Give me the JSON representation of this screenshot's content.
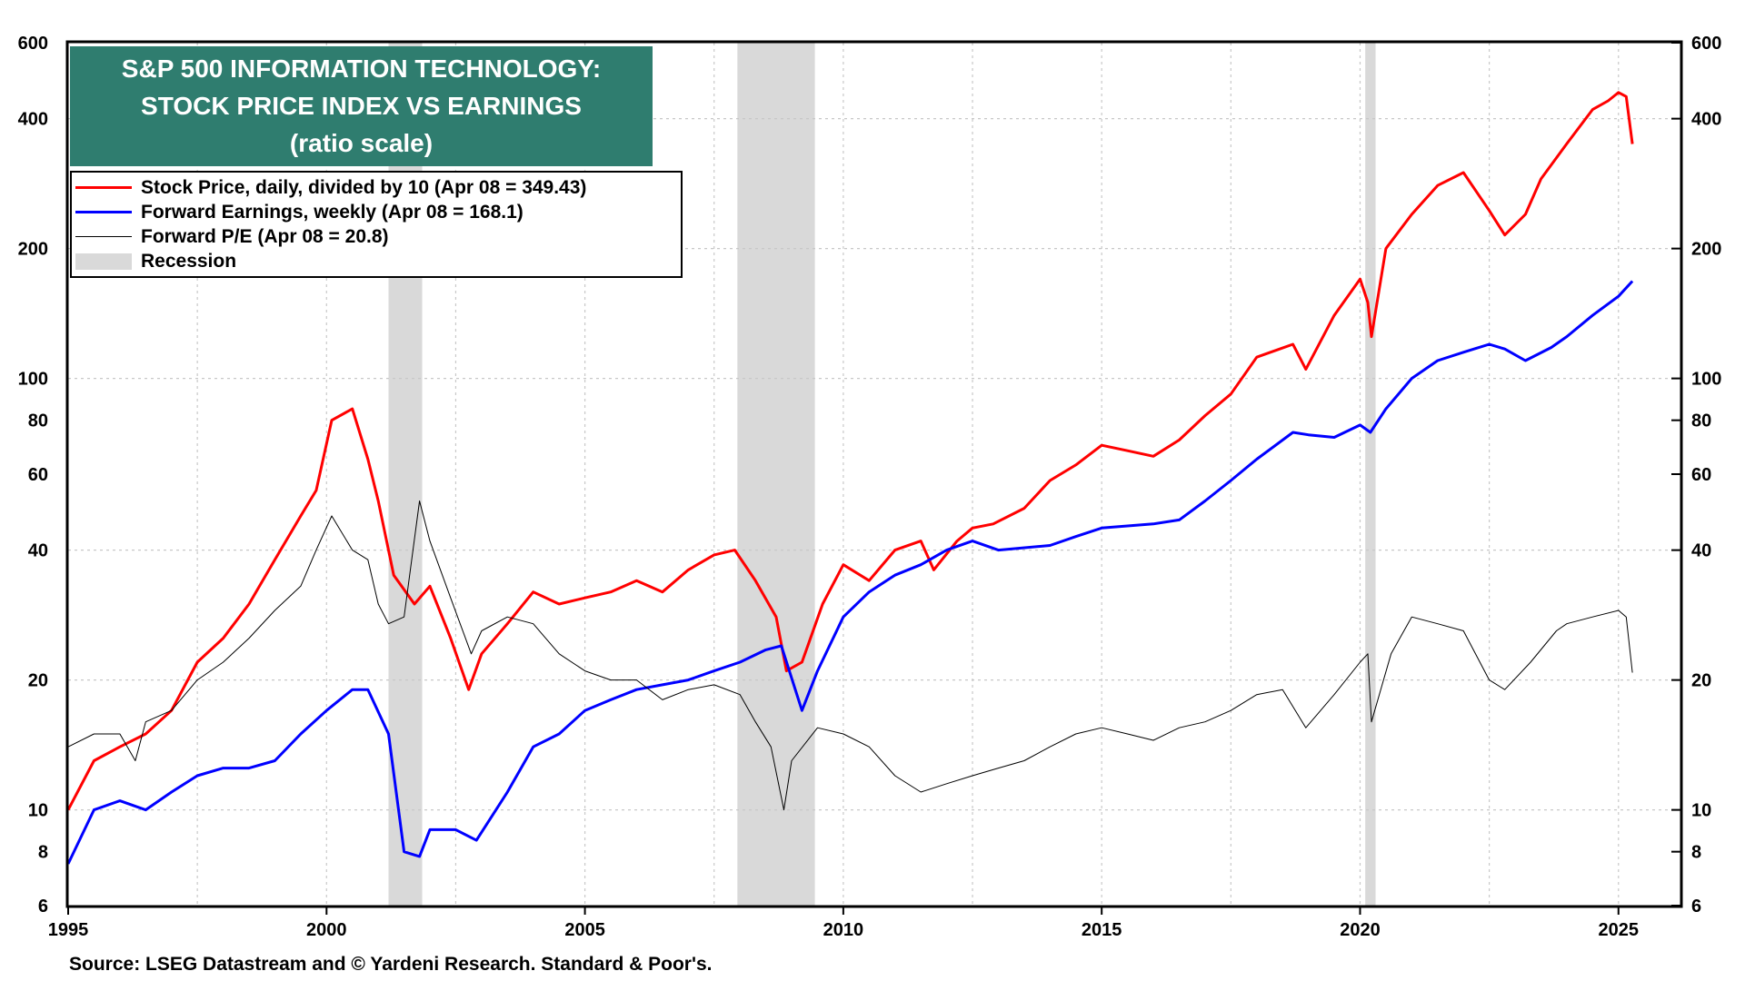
{
  "chart_data": {
    "type": "line",
    "title_lines": [
      "S&P 500 INFORMATION TECHNOLOGY:",
      "STOCK PRICE INDEX VS EARNINGS",
      "(ratio scale)"
    ],
    "y_scale": "log",
    "ylim": [
      6,
      600
    ],
    "xlim": [
      1995,
      2026.2
    ],
    "x_ticks": [
      "1995",
      "2000",
      "2005",
      "2010",
      "2015",
      "2020",
      "2025"
    ],
    "y_ticks": [
      "6",
      "8",
      "10",
      "20",
      "40",
      "60",
      "80",
      "100",
      "200",
      "400",
      "600"
    ],
    "grid": true,
    "legend_position": "top-left",
    "legend": [
      {
        "label": "Stock Price, daily, divided by 10 (Apr 08 = 349.43)",
        "color": "#ff0000",
        "kind": "line"
      },
      {
        "label": "Forward Earnings, weekly (Apr 08 = 168.1)",
        "color": "#0000ff",
        "kind": "line"
      },
      {
        "label": "Forward P/E (Apr 08 = 20.8)",
        "color": "#000000",
        "kind": "thin-line"
      },
      {
        "label": "Recession",
        "color": "#d9d9d9",
        "kind": "box"
      }
    ],
    "recessions": [
      [
        2001.2,
        2001.85
      ],
      [
        2007.95,
        2009.45
      ],
      [
        2020.1,
        2020.3
      ]
    ],
    "series": [
      {
        "name": "Stock Price, daily, divided by 10 (Apr 08 = 349.43)",
        "color": "#ff0000",
        "x": [
          1995.0,
          1995.5,
          1996.0,
          1996.5,
          1997.0,
          1997.5,
          1998.0,
          1998.5,
          1999.0,
          1999.5,
          1999.8,
          2000.1,
          2000.5,
          2000.8,
          2001.0,
          2001.3,
          2001.7,
          2002.0,
          2002.4,
          2002.75,
          2003.0,
          2003.5,
          2004.0,
          2004.5,
          2005.0,
          2005.5,
          2006.0,
          2006.5,
          2007.0,
          2007.5,
          2007.9,
          2008.3,
          2008.7,
          2008.9,
          2009.2,
          2009.6,
          2010.0,
          2010.5,
          2011.0,
          2011.5,
          2011.75,
          2012.2,
          2012.5,
          2012.9,
          2013.5,
          2014.0,
          2014.5,
          2015.0,
          2015.5,
          2016.0,
          2016.5,
          2017.0,
          2017.5,
          2018.0,
          2018.7,
          2018.95,
          2019.5,
          2020.0,
          2020.15,
          2020.22,
          2020.5,
          2021.0,
          2021.5,
          2022.0,
          2022.5,
          2022.8,
          2023.2,
          2023.5,
          2024.0,
          2024.5,
          2024.8,
          2025.0,
          2025.15,
          2025.27
        ],
        "values": [
          10,
          13,
          14,
          15,
          17,
          22,
          25,
          30,
          38,
          48,
          55,
          80,
          85,
          65,
          52,
          35,
          30,
          33,
          25,
          19,
          23,
          27,
          32,
          30,
          31,
          32,
          34,
          32,
          36,
          39,
          40,
          34,
          28,
          21,
          22,
          30,
          37,
          34,
          40,
          42,
          36,
          42,
          45,
          46,
          50,
          58,
          63,
          70,
          68,
          66,
          72,
          82,
          92,
          112,
          120,
          105,
          140,
          170,
          150,
          125,
          200,
          240,
          280,
          300,
          245,
          215,
          240,
          290,
          350,
          420,
          440,
          460,
          450,
          349.43
        ]
      },
      {
        "name": "Forward Earnings, weekly (Apr 08 = 168.1)",
        "color": "#0000ff",
        "x": [
          1995.0,
          1995.5,
          1996.0,
          1996.5,
          1997.0,
          1997.5,
          1998.0,
          1998.5,
          1999.0,
          1999.5,
          2000.0,
          2000.5,
          2000.8,
          2001.2,
          2001.5,
          2001.8,
          2002.0,
          2002.5,
          2002.9,
          2003.5,
          2004.0,
          2004.5,
          2005.0,
          2005.5,
          2006.0,
          2006.5,
          2007.0,
          2007.5,
          2008.0,
          2008.5,
          2008.8,
          2009.2,
          2009.5,
          2010.0,
          2010.5,
          2011.0,
          2011.5,
          2012.0,
          2012.5,
          2013.0,
          2014.0,
          2014.5,
          2015.0,
          2016.0,
          2016.5,
          2017.0,
          2017.5,
          2018.0,
          2018.7,
          2019.0,
          2019.5,
          2020.0,
          2020.2,
          2020.5,
          2021.0,
          2021.5,
          2022.0,
          2022.5,
          2022.8,
          2023.2,
          2023.7,
          2024.0,
          2024.5,
          2025.0,
          2025.27
        ],
        "values": [
          7.5,
          10,
          10.5,
          10,
          11,
          12,
          12.5,
          12.5,
          13,
          15,
          17,
          19,
          19,
          15,
          8,
          7.8,
          9,
          9,
          8.5,
          11,
          14,
          15,
          17,
          18,
          19,
          19.5,
          20,
          21,
          22,
          23.5,
          24,
          17,
          21,
          28,
          32,
          35,
          37,
          40,
          42,
          40,
          41,
          43,
          45,
          46,
          47,
          52,
          58,
          65,
          75,
          74,
          73,
          78,
          75,
          85,
          100,
          110,
          115,
          120,
          117,
          110,
          118,
          125,
          140,
          155,
          168.1
        ]
      },
      {
        "name": "Forward P/E (Apr 08 = 20.8)",
        "color": "#000000",
        "x": [
          1995.0,
          1995.5,
          1996.0,
          1996.3,
          1996.5,
          1997.0,
          1997.5,
          1998.0,
          1998.5,
          1999.0,
          1999.5,
          1999.8,
          2000.1,
          2000.5,
          2000.8,
          2001.0,
          2001.2,
          2001.5,
          2001.8,
          2002.0,
          2002.4,
          2002.8,
          2003.0,
          2003.5,
          2004.0,
          2004.5,
          2005.0,
          2005.5,
          2006.0,
          2006.5,
          2007.0,
          2007.5,
          2008.0,
          2008.3,
          2008.6,
          2008.85,
          2009.0,
          2009.5,
          2010.0,
          2010.5,
          2011.0,
          2011.5,
          2012.0,
          2012.5,
          2013.0,
          2013.5,
          2014.0,
          2014.5,
          2015.0,
          2015.5,
          2016.0,
          2016.5,
          2017.0,
          2017.5,
          2018.0,
          2018.5,
          2018.95,
          2019.5,
          2020.0,
          2020.15,
          2020.22,
          2020.6,
          2021.0,
          2021.5,
          2022.0,
          2022.5,
          2022.8,
          2023.3,
          2023.8,
          2024.0,
          2024.5,
          2025.0,
          2025.15,
          2025.27
        ],
        "values": [
          14,
          15,
          15,
          13,
          16,
          17,
          20,
          22,
          25,
          29,
          33,
          40,
          48,
          40,
          38,
          30,
          27,
          28,
          52,
          42,
          31,
          23,
          26,
          28,
          27,
          23,
          21,
          20,
          20,
          18,
          19,
          19.5,
          18.5,
          16,
          14,
          10,
          13,
          15.5,
          15,
          14,
          12,
          11,
          11.5,
          12,
          12.5,
          13,
          14,
          15,
          15.5,
          15,
          14.5,
          15.5,
          16,
          17,
          18.5,
          19,
          15.5,
          18.5,
          22,
          23,
          16,
          23,
          28,
          27,
          26,
          20,
          19,
          22,
          26,
          27,
          28,
          29,
          28,
          20.8
        ]
      }
    ]
  },
  "source_text": "Source: LSEG Datastream and © Yardeni Research. Standard & Poor's."
}
